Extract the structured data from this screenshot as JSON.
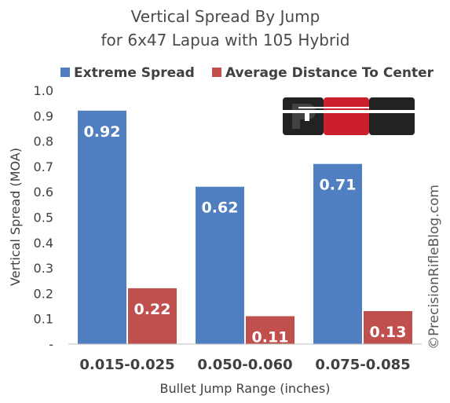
{
  "chart_data": {
    "type": "bar",
    "title": "Vertical Spread By Jump",
    "subtitle": "for 6x47 Lapua with 105 Hybrid",
    "xlabel": "Bullet Jump Range (inches)",
    "ylabel": "Vertical Spread (MOA)",
    "categories": [
      "0.015-0.025",
      "0.050-0.060",
      "0.075-0.085"
    ],
    "series": [
      {
        "name": "Extreme Spread",
        "values": [
          0.92,
          0.62,
          0.71
        ],
        "labels": [
          "0.92",
          "0.62",
          "0.71"
        ],
        "color": "#4f7fc1"
      },
      {
        "name": "Average Distance To Center",
        "values": [
          0.22,
          0.11,
          0.13
        ],
        "labels": [
          "0.22",
          "0.11",
          "0.13"
        ],
        "color": "#c0504d"
      }
    ],
    "ylim": [
      0,
      1.0
    ],
    "yticks": [
      0,
      0.1,
      0.2,
      0.3,
      0.4,
      0.5,
      0.6,
      0.7,
      0.8,
      0.9,
      1.0
    ],
    "ytick_labels": [
      "-",
      "0.1",
      "0.2",
      "0.3",
      "0.4",
      "0.5",
      "0.6",
      "0.7",
      "0.8",
      "0.9",
      "1.0"
    ],
    "grid": false,
    "legend_position": "top"
  },
  "logo": {
    "text": "PRB",
    "colors": [
      "#222222",
      "#cc1f2e"
    ]
  },
  "watermark": "©PrecisionRifleBlog.com"
}
